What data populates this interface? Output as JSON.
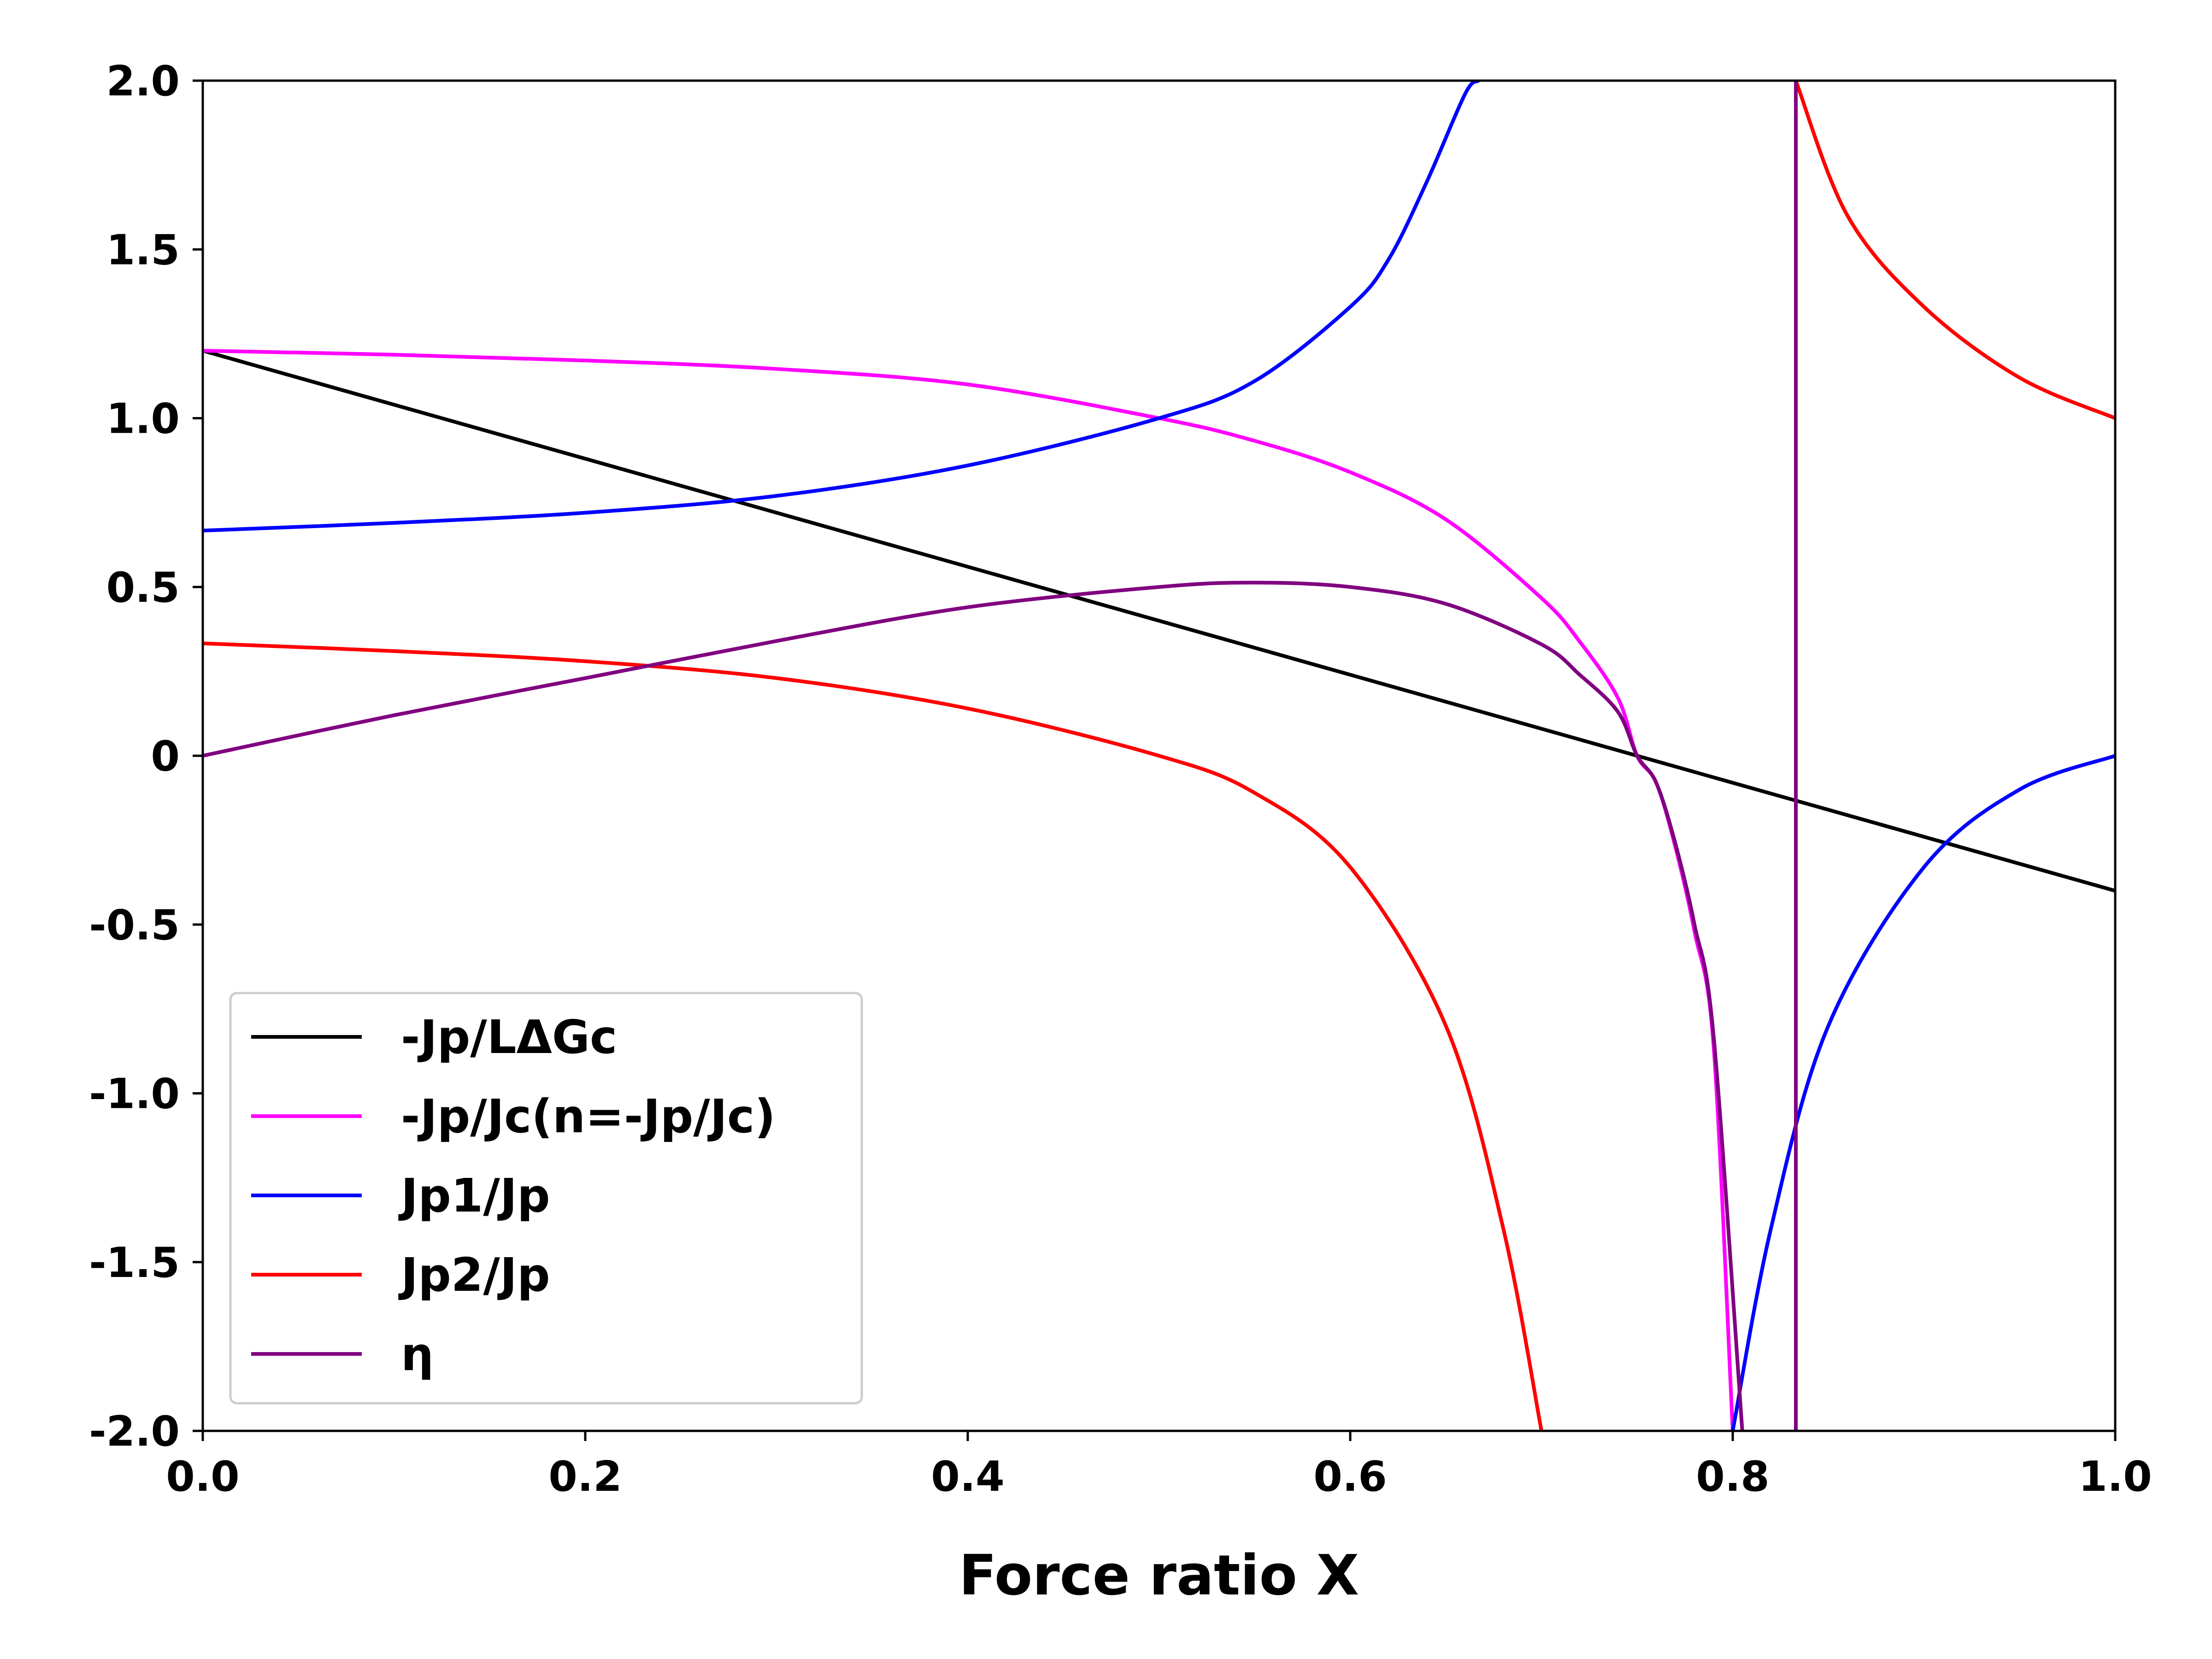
{
  "chart_data": {
    "type": "line",
    "xlabel": "Force ratio X",
    "ylabel": "",
    "xlim": [
      0.0,
      1.0
    ],
    "ylim": [
      -2.0,
      2.0
    ],
    "xticks": [
      "0.0",
      "0.2",
      "0.4",
      "0.6",
      "0.8",
      "1.0"
    ],
    "yticks": [
      "2.0",
      "1.5",
      "1.0",
      "0.5",
      "0",
      "-0.5",
      "-1.0",
      "-1.5",
      "-2.0"
    ],
    "grid": false,
    "legend_position": "lower-left",
    "series": [
      {
        "name": "-Jp/LΔGc",
        "color": "#000000",
        "x": [
          0.0,
          0.2,
          0.4,
          0.6,
          0.75,
          0.8,
          1.0
        ],
        "y": [
          1.2,
          0.88,
          0.56,
          0.24,
          0.0,
          -0.08,
          -0.4
        ]
      },
      {
        "name": "-Jp/Jc(n=-Jp/Jc)",
        "color": "#ff00ff",
        "x": [
          0.0,
          0.1,
          0.2,
          0.3,
          0.4,
          0.5,
          0.55,
          0.6,
          0.65,
          0.7,
          0.72,
          0.74,
          0.75,
          0.76,
          0.77,
          0.78,
          0.79,
          0.8
        ],
        "y": [
          1.2,
          1.188,
          1.171,
          1.146,
          1.1,
          1.0,
          0.933,
          0.84,
          0.7,
          0.467,
          0.338,
          0.171,
          0.0,
          -0.08,
          -0.27,
          -0.52,
          -0.86,
          -2.0
        ]
      },
      {
        "name": "Jp1/Jp",
        "color": "#0000ff",
        "x": [
          0.0,
          0.1,
          0.2,
          0.3,
          0.4,
          0.5,
          0.55,
          0.6,
          0.62,
          0.64,
          0.66,
          0.667
        ],
        "y": [
          0.667,
          0.69,
          0.72,
          0.77,
          0.86,
          1.0,
          1.11,
          1.33,
          1.47,
          1.7,
          1.96,
          2.0
        ],
        "x2": [
          0.8,
          0.82,
          0.85,
          0.9,
          0.95,
          1.0
        ],
        "y2": [
          -2.0,
          -1.4,
          -0.8,
          -0.33,
          -0.1,
          0.0
        ]
      },
      {
        "name": "Jp2/Jp",
        "color": "#ff0000",
        "x": [
          0.0,
          0.1,
          0.2,
          0.3,
          0.4,
          0.5,
          0.55,
          0.6,
          0.65,
          0.68,
          0.7
        ],
        "y": [
          0.333,
          0.31,
          0.28,
          0.23,
          0.14,
          0.0,
          -0.11,
          -0.33,
          -0.8,
          -1.4,
          -2.0
        ],
        "x2": [
          0.833,
          0.86,
          0.9,
          0.95,
          1.0
        ],
        "y2": [
          2.0,
          1.6,
          1.33,
          1.12,
          1.0
        ]
      },
      {
        "name": "η",
        "color": "#800080",
        "x": [
          0.0,
          0.1,
          0.2,
          0.3,
          0.4,
          0.5,
          0.55,
          0.6,
          0.65,
          0.7,
          0.72,
          0.74,
          0.75,
          0.76,
          0.77,
          0.78,
          0.79,
          0.805
        ],
        "y": [
          0.0,
          0.12,
          0.23,
          0.34,
          0.44,
          0.5,
          0.513,
          0.5,
          0.45,
          0.33,
          0.24,
          0.13,
          0.0,
          -0.08,
          -0.26,
          -0.5,
          -0.83,
          -2.0
        ],
        "x2": [
          0.833,
          0.833
        ],
        "y2": [
          -2.0,
          2.0
        ]
      }
    ]
  }
}
